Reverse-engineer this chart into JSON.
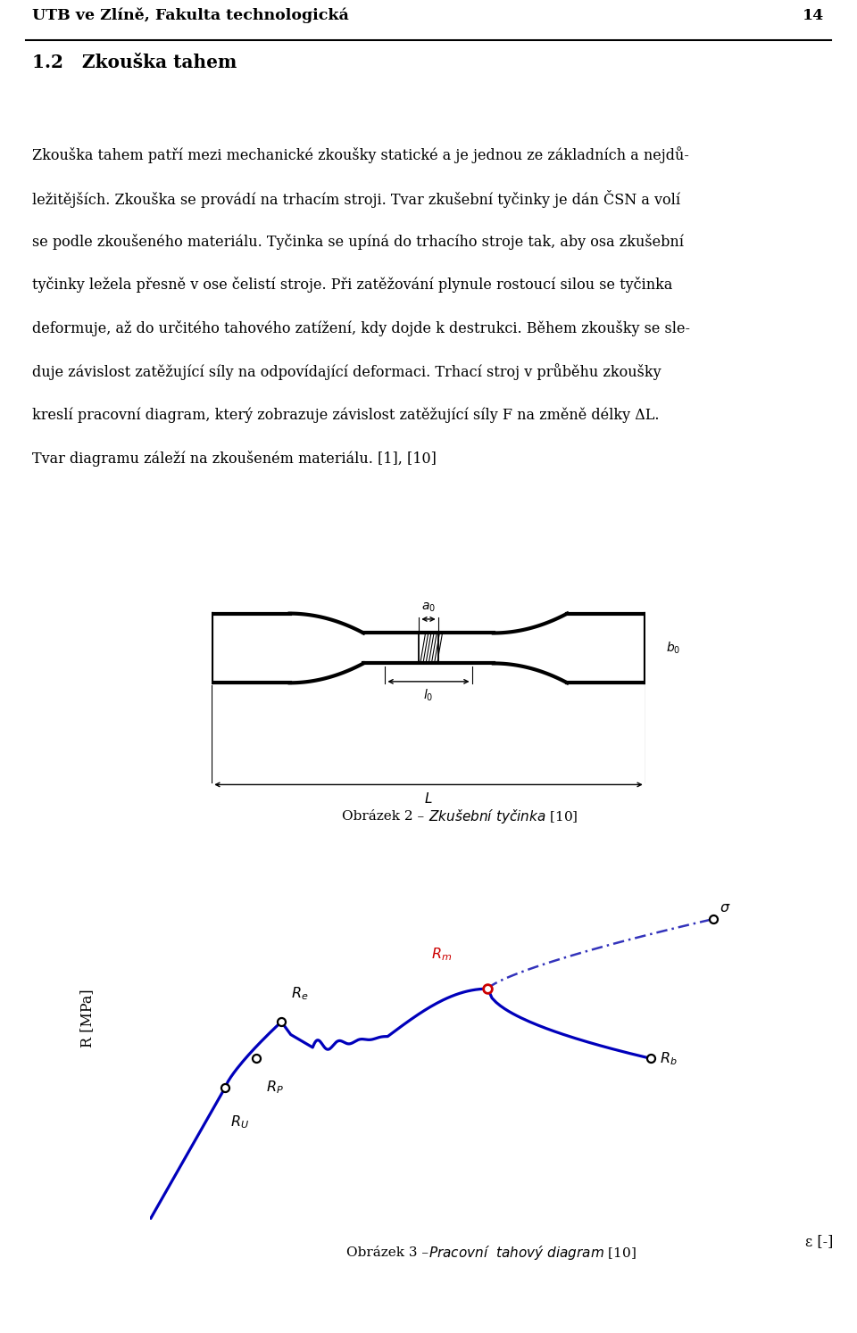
{
  "header_text": "UTB ve Zlíně, Fakulta technologická",
  "page_number": "14",
  "section_title": "1.2   Zkouška tahem",
  "body_lines": [
    "Zkouška tahem patří mezi mechanické zkoušky statické a je jednou ze základních a nejdů-",
    "ležitějších. Zkouška se provádí na trhacím stroji. Tvar zkušební tyčinky je dán ČSN a volí",
    "se podle zkoušeného materiálu. Tyčinka se upíná do trhacího stroje tak, aby osa zkušební",
    "tyčinky ležela přesně v ose čelistí stroje. Při zatěžování plynule rostoucí silou se tyčinka",
    "deformuje, až do určitého tahového zatížení, kdy dojde k destrukci. Během zkoušky se sle-",
    "duje závislost zatěžující síly na odpovídající deformaci. Trhací stroj v průběhu zkoušky",
    "kreslí pracovní diagram, který zobrazuje závislost zatěžující síly F na změně délky ΔL.",
    "Tvar diagramu záleží na zkoušeném materiálu. [1], [10]"
  ],
  "caption1_plain": "Obrázek 2 – ",
  "caption1_italic": "Zkušební tyčinka",
  "caption1_end": " [10]",
  "caption2_plain": "Obrázek 3 –",
  "caption2_italic": "Pracovní  tahový diagram",
  "caption2_end": " [10]",
  "background_color": "#ffffff",
  "blue": "#0000bb",
  "dashblue": "#3333bb",
  "red": "#cc0000"
}
